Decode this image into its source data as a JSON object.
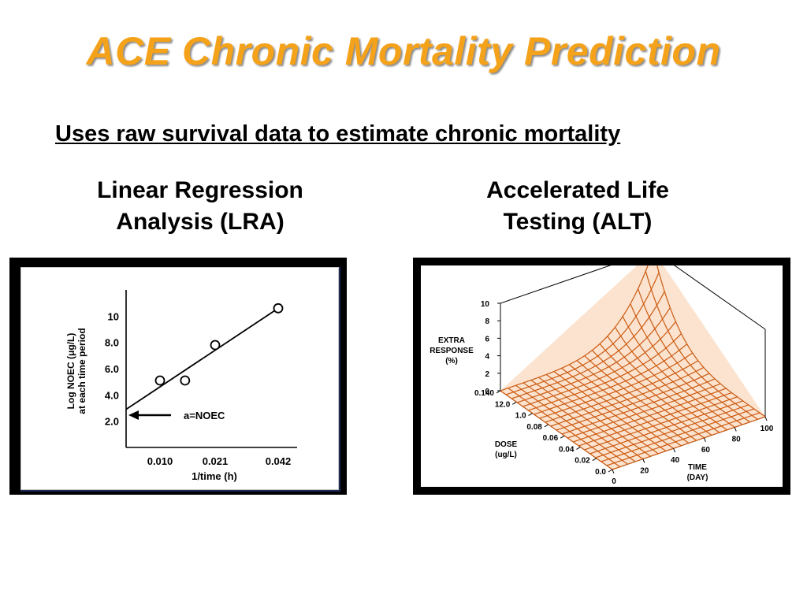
{
  "slide": {
    "title": "ACE Chronic Mortality Prediction",
    "subtitle": "Uses raw survival data to estimate chronic mortality",
    "left_heading": [
      "Linear Regression",
      "Analysis (LRA)"
    ],
    "right_heading": [
      "Accelerated Life",
      "Testing (ALT)"
    ]
  },
  "colors": {
    "title": "#f5a21b",
    "surface": "#cc5a10",
    "panel_border": "#000000",
    "lra_shadow": "#1b2a55"
  },
  "chart_data": [
    {
      "type": "scatter",
      "title": "",
      "xlabel": "1/time (h)",
      "ylabel": [
        "Log NOEC (μg/L)",
        "at each time period"
      ],
      "x_tick_labels": [
        "0.010",
        "0.021",
        "0.042"
      ],
      "y_tick_labels": [
        "2.0",
        "4.0",
        "6.0",
        "8.0",
        "10"
      ],
      "ylim": [
        0,
        12
      ],
      "points": [
        {
          "x": 0.01,
          "y": 5.1
        },
        {
          "x": 0.015,
          "y": 5.1
        },
        {
          "x": 0.021,
          "y": 7.8
        },
        {
          "x": 0.042,
          "y": 10.6
        }
      ],
      "regression_line": {
        "x": [
          0.0,
          0.042
        ],
        "y": [
          2.9,
          10.6
        ]
      },
      "annotation": "a=NOEC",
      "grid": false
    },
    {
      "type": "surface",
      "title": "",
      "zlabel": [
        "EXTRA",
        "RESPONSE",
        "(%)"
      ],
      "z_tick_labels": [
        "0",
        "2",
        "4",
        "6",
        "8",
        "10"
      ],
      "dose_label": [
        "DOSE",
        "(ug/L)"
      ],
      "dose_tick_labels": [
        "0.0",
        "0.02",
        "0.04",
        "0.06",
        "0.08",
        "1.0",
        "12.0",
        "0.140"
      ],
      "time_label": [
        "TIME",
        "(DAY)"
      ],
      "time_tick_labels": [
        "0",
        "20",
        "40",
        "60",
        "80",
        "100"
      ],
      "zlim": [
        0,
        10
      ],
      "description_of_surface": "extra response near 0 across most of the grid, rising sharply to about 10 at maximum dose and maximum time"
    }
  ]
}
